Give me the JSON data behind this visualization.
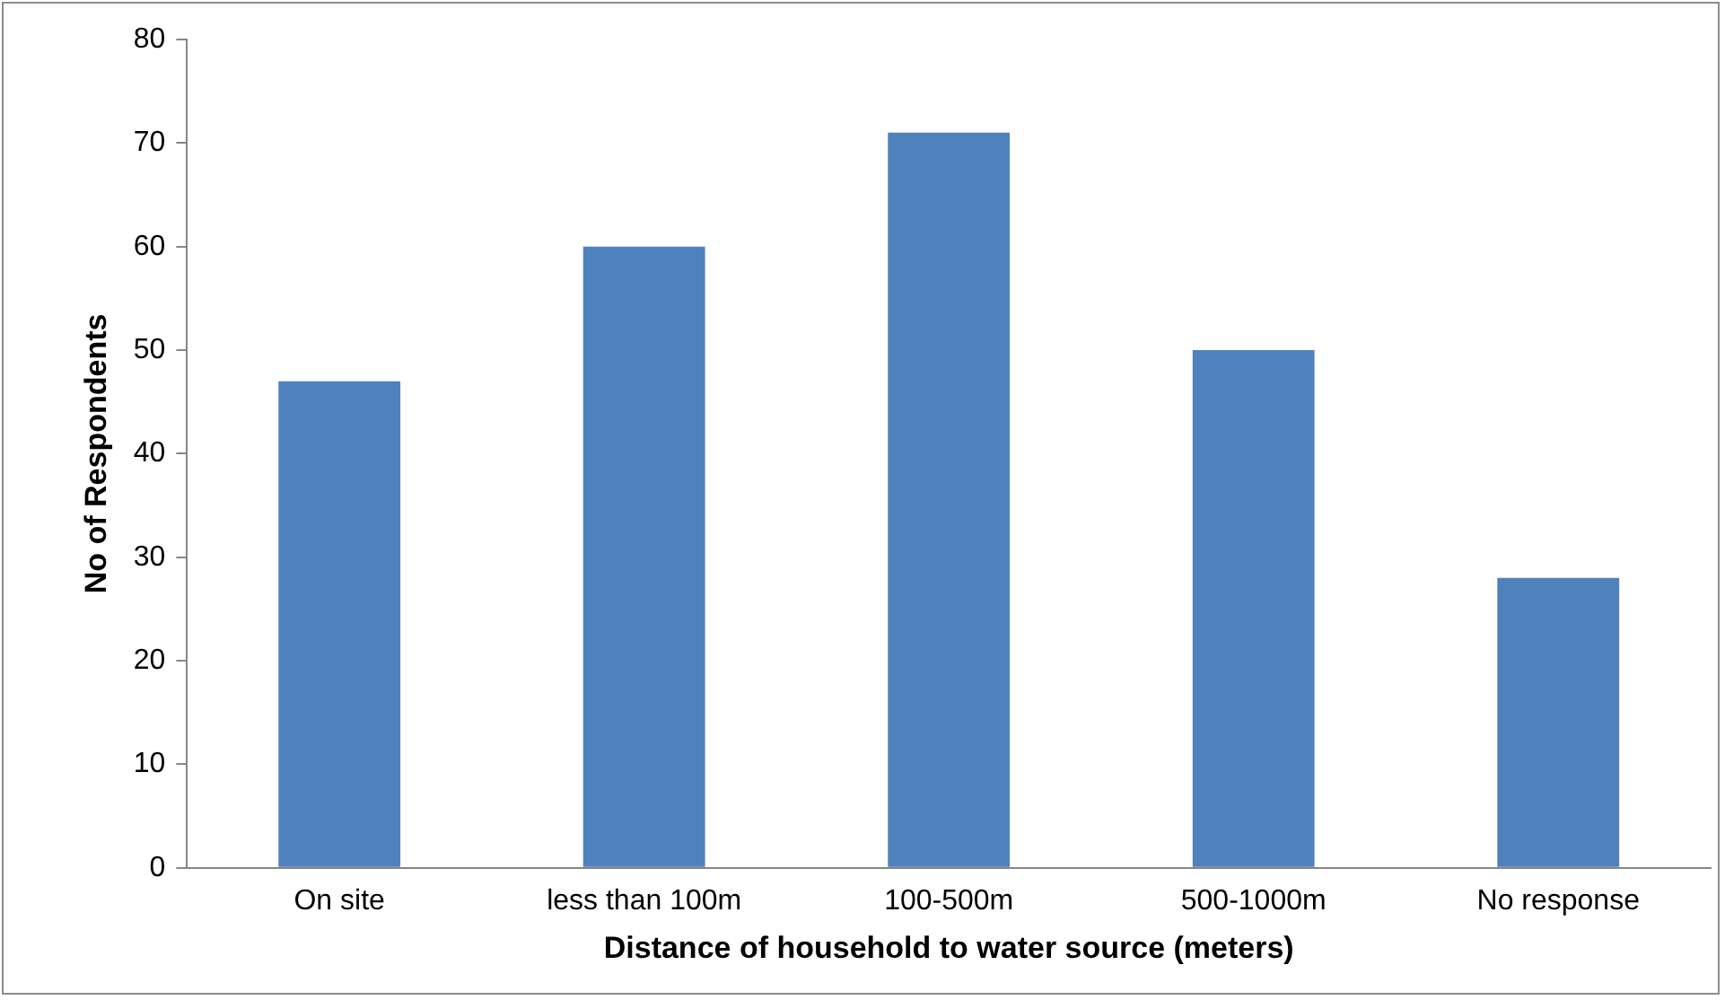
{
  "chart_data": {
    "type": "bar",
    "xlabel": "Distance of household to water source (meters)",
    "ylabel": "No of Respondents",
    "categories": [
      "On site",
      "less than 100m",
      "100-500m",
      "500-1000m",
      "No response"
    ],
    "values": [
      47,
      60,
      71,
      50,
      28
    ],
    "color": "#4f81bd",
    "ylim": [
      0,
      80
    ],
    "yticks": [
      0,
      10,
      20,
      30,
      40,
      50,
      60,
      70,
      80
    ],
    "grid": false,
    "legend": false
  }
}
